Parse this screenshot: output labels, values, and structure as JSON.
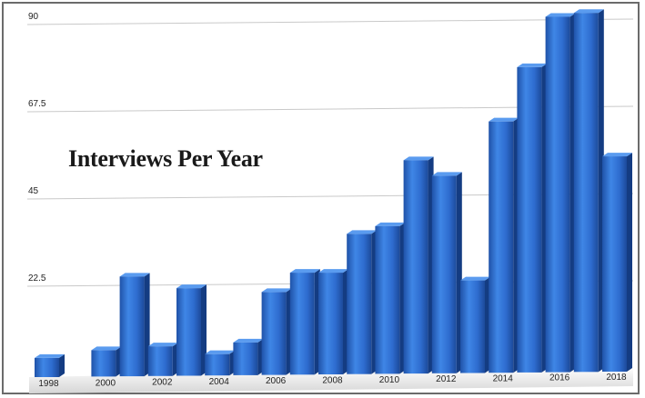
{
  "chart_data": {
    "type": "bar",
    "title": "Interviews Per Year",
    "categories": [
      "1998",
      "1999",
      "2000",
      "2001",
      "2002",
      "2003",
      "2004",
      "2005",
      "2006",
      "2007",
      "2008",
      "2009",
      "2010",
      "2011",
      "2012",
      "2013",
      "2014",
      "2015",
      "2016",
      "2017",
      "2018"
    ],
    "values": [
      4,
      0,
      6,
      25,
      7,
      22,
      5,
      8,
      21,
      26,
      26,
      36,
      38,
      55,
      51,
      24,
      65,
      79,
      92,
      93,
      56
    ],
    "x_tick_labels": [
      "1998",
      "2000",
      "2002",
      "2004",
      "2006",
      "2008",
      "2010",
      "2012",
      "2014",
      "2016",
      "2018"
    ],
    "y_ticks": [
      "90",
      "67.5",
      "45",
      "22.5"
    ],
    "ylim": [
      0,
      90
    ],
    "grid": true,
    "bar_color": "#2f6fd0",
    "xlabel": "",
    "ylabel": ""
  }
}
